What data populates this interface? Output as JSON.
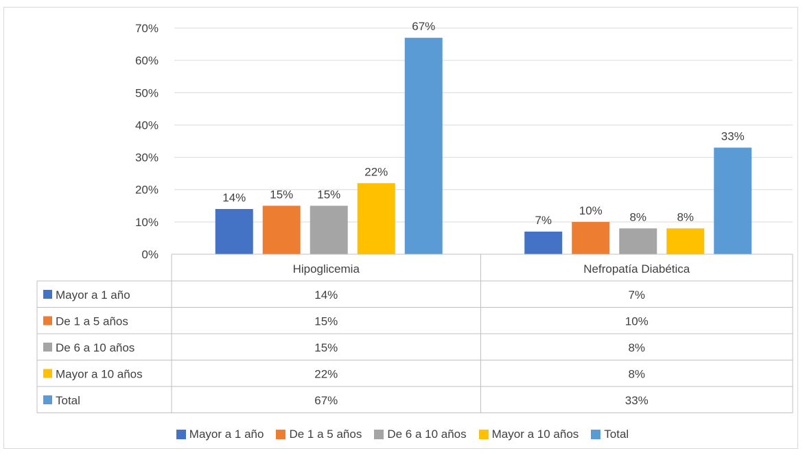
{
  "chart_data": {
    "type": "bar",
    "categories": [
      "Hipoglicemia",
      "Nefropatía Diabética"
    ],
    "series": [
      {
        "name": "Mayor a 1 año",
        "color": "#4472c4",
        "values": [
          14,
          7
        ],
        "labels": [
          "14%",
          "7%"
        ]
      },
      {
        "name": "De 1 a 5 años",
        "color": "#ed7d31",
        "values": [
          15,
          10
        ],
        "labels": [
          "15%",
          "10%"
        ]
      },
      {
        "name": "De 6 a 10 años",
        "color": "#a5a5a5",
        "values": [
          15,
          8
        ],
        "labels": [
          "15%",
          "8%"
        ]
      },
      {
        "name": "Mayor a 10 años",
        "color": "#ffc000",
        "values": [
          22,
          8
        ],
        "labels": [
          "22%",
          "8%"
        ]
      },
      {
        "name": "Total",
        "color": "#5b9bd5",
        "values": [
          67,
          33
        ],
        "labels": [
          "67%",
          "33%"
        ]
      }
    ],
    "ylim": [
      0,
      70
    ],
    "yticks": [
      "0%",
      "10%",
      "20%",
      "30%",
      "40%",
      "50%",
      "60%",
      "70%"
    ],
    "grid": true,
    "legend": "bottom",
    "data_table": true
  }
}
